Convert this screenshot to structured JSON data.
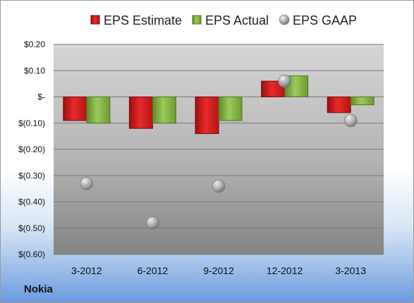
{
  "company": "Nokia",
  "colors": {
    "estimate": "#e02020",
    "actual": "#92c050",
    "gaap": "#b8b8b8"
  },
  "chart_data": {
    "type": "bar",
    "categories": [
      "3-2012",
      "6-2012",
      "9-2012",
      "12-2012",
      "3-2013"
    ],
    "series": [
      {
        "name": "EPS Estimate",
        "kind": "bar",
        "values": [
          -0.09,
          -0.12,
          -0.14,
          0.06,
          -0.06
        ]
      },
      {
        "name": "EPS Actual",
        "kind": "bar",
        "values": [
          -0.1,
          -0.1,
          -0.09,
          0.08,
          -0.03
        ]
      },
      {
        "name": "EPS GAAP",
        "kind": "marker",
        "values": [
          -0.33,
          -0.48,
          -0.34,
          0.06,
          -0.09
        ]
      }
    ],
    "y_ticks": [
      0.2,
      0.1,
      0,
      -0.1,
      -0.2,
      -0.3,
      -0.4,
      -0.5,
      -0.6
    ],
    "y_tick_labels": [
      "$0.20",
      "$0.10",
      "$-",
      "$(0.10)",
      "$(0.20)",
      "$(0.30)",
      "$(0.40)",
      "$(0.50)",
      "$(0.60)"
    ],
    "ylim": [
      -0.6,
      0.2
    ],
    "grid": true,
    "legend_position": "top"
  }
}
